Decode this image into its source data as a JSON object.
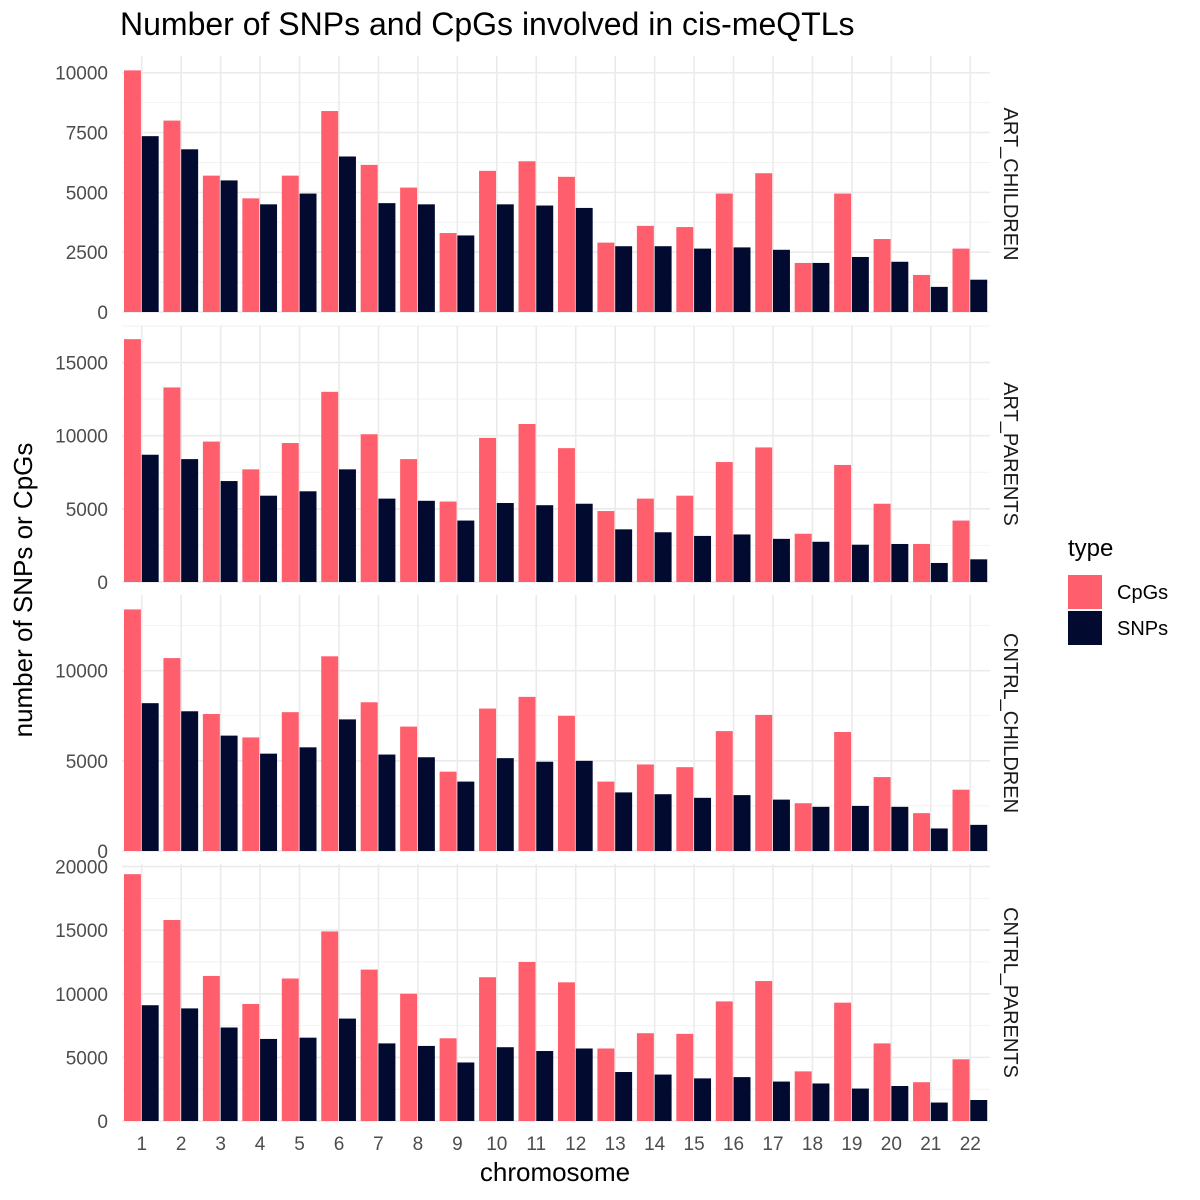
{
  "chart_data": {
    "type": "bar",
    "title": "Number of SNPs and CpGs involved in cis-meQTLs",
    "xlabel": "chromosome",
    "ylabel": "number of SNPs or CpGs",
    "categories": [
      "1",
      "2",
      "3",
      "4",
      "5",
      "6",
      "7",
      "8",
      "9",
      "10",
      "11",
      "12",
      "13",
      "14",
      "15",
      "16",
      "17",
      "18",
      "19",
      "20",
      "21",
      "22"
    ],
    "legend": {
      "title": "type",
      "position": "right",
      "entries": [
        {
          "name": "CpGs",
          "color": "#FF5E6C"
        },
        {
          "name": "SNPs",
          "color": "#020A30"
        }
      ]
    },
    "grid": true,
    "panels": [
      {
        "strip": "ART_CHILDREN",
        "ylim": [
          0,
          10700
        ],
        "yticks": [
          0,
          2500,
          5000,
          7500,
          10000
        ],
        "ytick_labels": [
          "0",
          "2500",
          "5000",
          "7500",
          "10000"
        ],
        "series": [
          {
            "name": "CpGs",
            "values": [
              10100,
              8000,
              5700,
              4750,
              5700,
              8400,
              6150,
              5200,
              3300,
              5900,
              6300,
              5650,
              2900,
              3600,
              3550,
              4950,
              5800,
              2050,
              4950,
              3050,
              1550,
              2650
            ]
          },
          {
            "name": "SNPs",
            "values": [
              7350,
              6800,
              5500,
              4500,
              4950,
              6500,
              4550,
              4500,
              3200,
              4500,
              4450,
              4350,
              2750,
              2750,
              2650,
              2700,
              2600,
              2050,
              2300,
              2100,
              1050,
              1350
            ]
          }
        ]
      },
      {
        "strip": "ART_PARENTS",
        "ylim": [
          0,
          17500
        ],
        "yticks": [
          0,
          5000,
          10000,
          15000
        ],
        "ytick_labels": [
          "0",
          "5000",
          "10000",
          "15000"
        ],
        "series": [
          {
            "name": "CpGs",
            "values": [
              16600,
              13300,
              9600,
              7700,
              9500,
              13000,
              10100,
              8400,
              5500,
              9850,
              10800,
              9150,
              4850,
              5700,
              5900,
              8200,
              9200,
              3300,
              8000,
              5350,
              2600,
              4200
            ]
          },
          {
            "name": "SNPs",
            "values": [
              8700,
              8400,
              6900,
              5900,
              6200,
              7700,
              5700,
              5550,
              4200,
              5400,
              5250,
              5350,
              3600,
              3400,
              3150,
              3250,
              2950,
              2750,
              2550,
              2600,
              1300,
              1550
            ]
          }
        ]
      },
      {
        "strip": "CNTRL_CHILDREN",
        "ylim": [
          0,
          14200
        ],
        "yticks": [
          0,
          5000,
          10000
        ],
        "ytick_labels": [
          "0",
          "5000",
          "10000"
        ],
        "series": [
          {
            "name": "CpGs",
            "values": [
              13400,
              10700,
              7600,
              6300,
              7700,
              10800,
              8250,
              6900,
              4400,
              7900,
              8550,
              7500,
              3850,
              4800,
              4650,
              6650,
              7550,
              2650,
              6600,
              4100,
              2100,
              3400
            ]
          },
          {
            "name": "SNPs",
            "values": [
              8200,
              7750,
              6400,
              5400,
              5750,
              7300,
              5350,
              5200,
              3850,
              5150,
              4950,
              5000,
              3250,
              3150,
              2950,
              3100,
              2850,
              2450,
              2500,
              2450,
              1250,
              1450
            ]
          }
        ]
      },
      {
        "strip": "CNTRL_PARENTS",
        "ylim": [
          0,
          20200
        ],
        "yticks": [
          0,
          5000,
          10000,
          15000,
          20000
        ],
        "ytick_labels": [
          "0",
          "5000",
          "10000",
          "15000",
          "20000"
        ],
        "series": [
          {
            "name": "CpGs",
            "values": [
              19400,
              15800,
              11400,
              9200,
              11200,
              14900,
              11900,
              10000,
              6500,
              11300,
              12500,
              10900,
              5700,
              6900,
              6850,
              9400,
              11000,
              3900,
              9300,
              6100,
              3050,
              4850
            ]
          },
          {
            "name": "SNPs",
            "values": [
              9100,
              8850,
              7350,
              6450,
              6550,
              8050,
              6100,
              5900,
              4600,
              5800,
              5500,
              5700,
              3850,
              3650,
              3350,
              3450,
              3100,
              2950,
              2550,
              2750,
              1450,
              1650
            ]
          }
        ]
      }
    ]
  }
}
